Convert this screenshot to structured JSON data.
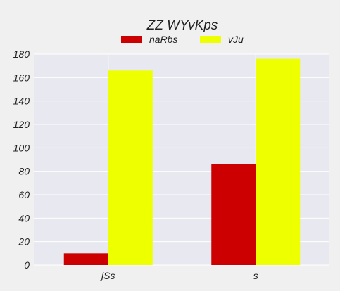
{
  "chart_data": {
    "type": "bar",
    "title": "ZZ WYvKps",
    "xlabel": "",
    "ylabel": "",
    "categories": [
      "jSs",
      "s"
    ],
    "series": [
      {
        "name": "naRbs",
        "values": [
          10,
          86
        ],
        "color": "#cc0000"
      },
      {
        "name": "vJu",
        "values": [
          166,
          176
        ],
        "color": "#eeff00"
      }
    ],
    "ylim": [
      0,
      180
    ],
    "yticks": [
      0,
      20,
      40,
      60,
      80,
      100,
      120,
      140,
      160,
      180
    ],
    "grid": true,
    "legend": "top-center",
    "plot_background": "#e8e8f0"
  }
}
